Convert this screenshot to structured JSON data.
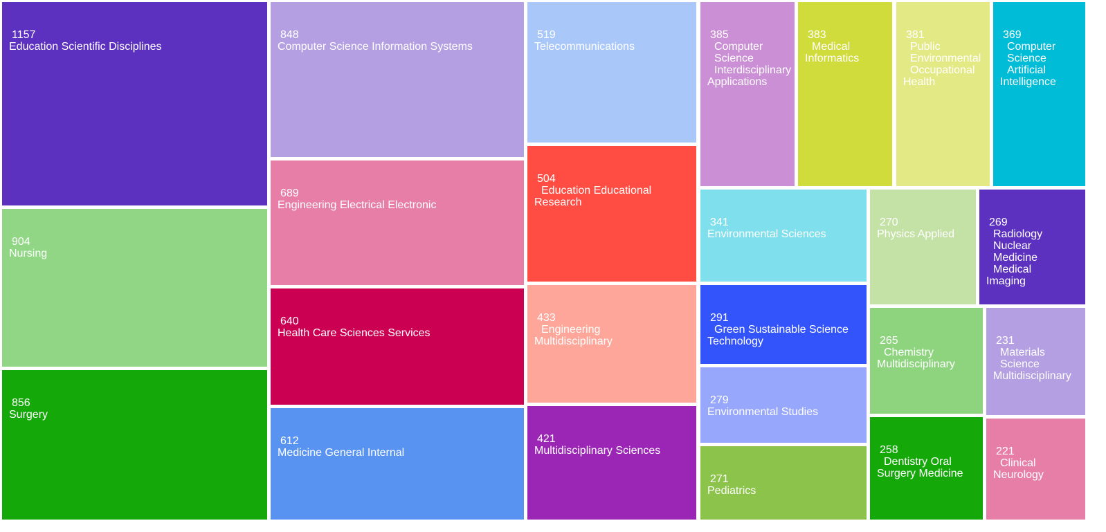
{
  "chart_data": {
    "type": "treemap",
    "title": "",
    "tiles": [
      {
        "value": 1157,
        "label_lines": [
          "Education Scientific Disciplines"
        ],
        "color": "#5c31c0"
      },
      {
        "value": 904,
        "label_lines": [
          "Nursing"
        ],
        "color": "#90d685"
      },
      {
        "value": 856,
        "label_lines": [
          "Surgery"
        ],
        "color": "#15a809"
      },
      {
        "value": 848,
        "label_lines": [
          "Computer Science Information Systems"
        ],
        "color": "#b39fe1"
      },
      {
        "value": 689,
        "label_lines": [
          "Engineering Electrical Electronic"
        ],
        "color": "#e77ea8"
      },
      {
        "value": 640,
        "label_lines": [
          "Health Care Sciences Services"
        ],
        "color": "#cc0052"
      },
      {
        "value": 612,
        "label_lines": [
          "Medicine General Internal"
        ],
        "color": "#5893f2"
      },
      {
        "value": 519,
        "label_lines": [
          "Telecommunications"
        ],
        "color": "#a9c8f9"
      },
      {
        "value": 504,
        "label_lines": [
          "  Education Educational",
          "Research"
        ],
        "color": "#ff4d43"
      },
      {
        "value": 433,
        "label_lines": [
          "  Engineering",
          "Multidisciplinary"
        ],
        "color": "#fea69a"
      },
      {
        "value": 421,
        "label_lines": [
          "Multidisciplinary Sciences"
        ],
        "color": "#9b26b5"
      },
      {
        "value": 385,
        "label_lines": [
          "  Computer",
          "  Science",
          "  Interdisciplinary",
          "Applications"
        ],
        "color": "#cb8fd5"
      },
      {
        "value": 383,
        "label_lines": [
          "  Medical",
          "Informatics"
        ],
        "color": "#d0dc3c"
      },
      {
        "value": 381,
        "label_lines": [
          "  Public",
          "  Environmental",
          "  Occupational",
          "Health"
        ],
        "color": "#e3e985"
      },
      {
        "value": 369,
        "label_lines": [
          "  Computer",
          "  Science",
          "  Artificial",
          "Intelligence"
        ],
        "color": "#00bcd6"
      },
      {
        "value": 341,
        "label_lines": [
          "Environmental Sciences"
        ],
        "color": "#7fdfec"
      },
      {
        "value": 291,
        "label_lines": [
          "  Green Sustainable Science",
          "Technology"
        ],
        "color": "#3353fb"
      },
      {
        "value": 279,
        "label_lines": [
          "Environmental Studies"
        ],
        "color": "#97a7fb"
      },
      {
        "value": 271,
        "label_lines": [
          "Pediatrics"
        ],
        "color": "#8bc34b"
      },
      {
        "value": 270,
        "label_lines": [
          "Physics Applied"
        ],
        "color": "#c4e2a5"
      },
      {
        "value": 269,
        "label_lines": [
          "  Radiology",
          "  Nuclear",
          "  Medicine",
          "  Medical",
          "Imaging"
        ],
        "color": "#5c31c0"
      },
      {
        "value": 265,
        "label_lines": [
          "  Chemistry",
          "Multidisciplinary"
        ],
        "color": "#8ed47f"
      },
      {
        "value": 231,
        "label_lines": [
          "  Materials",
          "  Science",
          "Multidisciplinary"
        ],
        "color": "#b39fe1"
      },
      {
        "value": 258,
        "label_lines": [
          "  Dentistry Oral",
          "Surgery Medicine"
        ],
        "color": "#15a809"
      },
      {
        "value": 221,
        "label_lines": [
          "  Clinical",
          "Neurology"
        ],
        "color": "#e77ea8"
      }
    ]
  }
}
